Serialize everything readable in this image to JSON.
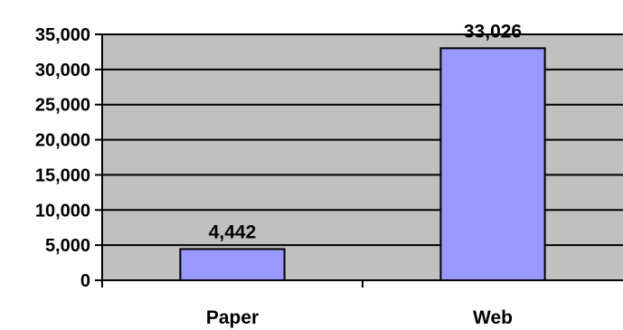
{
  "chart_data": {
    "type": "bar",
    "categories": [
      "Paper",
      "Web"
    ],
    "values": [
      4442,
      33026
    ],
    "data_labels": [
      "4,442",
      "33,026"
    ],
    "title": "",
    "xlabel": "",
    "ylabel": "",
    "ylim": [
      0,
      35000
    ],
    "yticks": [
      0,
      5000,
      10000,
      15000,
      20000,
      25000,
      30000,
      35000
    ],
    "ytick_labels": [
      "0",
      "5,000",
      "10,000",
      "15,000",
      "20,000",
      "25,000",
      "30,000",
      "35,000"
    ],
    "grid": true,
    "legend": "none",
    "colors": {
      "plot_background": "#c0c0c0",
      "bar_fill": "#9999ff",
      "bar_stroke": "#000000",
      "gridline": "#000000"
    }
  }
}
